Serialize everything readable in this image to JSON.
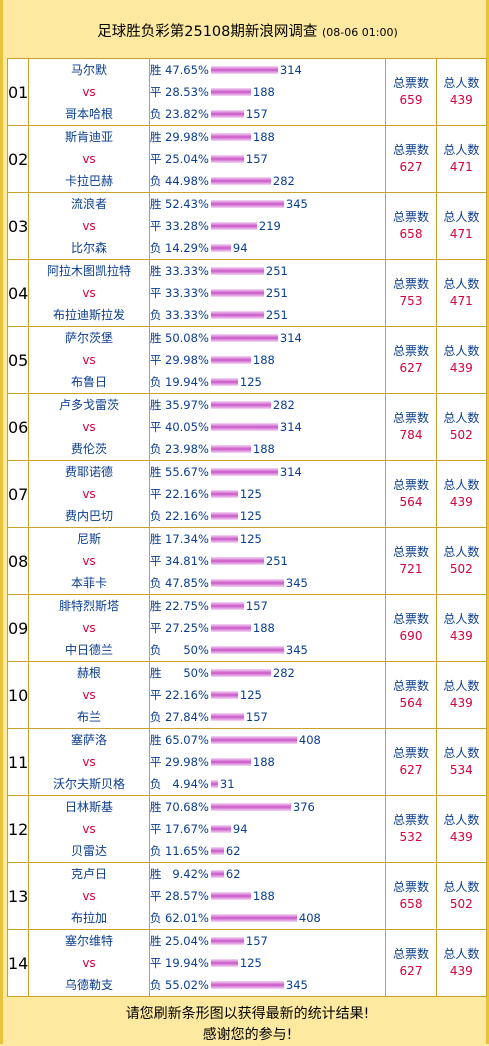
{
  "header": {
    "title": "足球胜负彩第25108期新浪网调查",
    "time": "(08-06 01:00)"
  },
  "labels": {
    "win": "胜",
    "draw": "平",
    "loss": "负",
    "vs": "vs",
    "total_votes": "总票数",
    "total_people": "总人数"
  },
  "chart_data": {
    "type": "bar",
    "title": "足球胜负彩第25108期新浪网调查",
    "orientation": "horizontal",
    "series_names": [
      "胜",
      "平",
      "负"
    ],
    "matches": [
      {
        "no": "01",
        "home": "马尔默",
        "away": "哥本哈根",
        "win": {
          "pct": "47.65%",
          "votes": 314
        },
        "draw": {
          "pct": "28.53%",
          "votes": 188
        },
        "loss": {
          "pct": "23.82%",
          "votes": 157
        },
        "total_votes": 659,
        "total_people": 439
      },
      {
        "no": "02",
        "home": "斯肯迪亚",
        "away": "卡拉巴赫",
        "win": {
          "pct": "29.98%",
          "votes": 188
        },
        "draw": {
          "pct": "25.04%",
          "votes": 157
        },
        "loss": {
          "pct": "44.98%",
          "votes": 282
        },
        "total_votes": 627,
        "total_people": 471
      },
      {
        "no": "03",
        "home": "流浪者",
        "away": "比尔森",
        "win": {
          "pct": "52.43%",
          "votes": 345
        },
        "draw": {
          "pct": "33.28%",
          "votes": 219
        },
        "loss": {
          "pct": "14.29%",
          "votes": 94
        },
        "total_votes": 658,
        "total_people": 471
      },
      {
        "no": "04",
        "home": "阿拉木图凯拉特",
        "away": "布拉迪斯拉发",
        "win": {
          "pct": "33.33%",
          "votes": 251
        },
        "draw": {
          "pct": "33.33%",
          "votes": 251
        },
        "loss": {
          "pct": "33.33%",
          "votes": 251
        },
        "total_votes": 753,
        "total_people": 471
      },
      {
        "no": "05",
        "home": "萨尔茨堡",
        "away": "布鲁日",
        "win": {
          "pct": "50.08%",
          "votes": 314
        },
        "draw": {
          "pct": "29.98%",
          "votes": 188
        },
        "loss": {
          "pct": "19.94%",
          "votes": 125
        },
        "total_votes": 627,
        "total_people": 439
      },
      {
        "no": "06",
        "home": "卢多戈雷茨",
        "away": "费伦茨",
        "win": {
          "pct": "35.97%",
          "votes": 282
        },
        "draw": {
          "pct": "40.05%",
          "votes": 314
        },
        "loss": {
          "pct": "23.98%",
          "votes": 188
        },
        "total_votes": 784,
        "total_people": 502
      },
      {
        "no": "07",
        "home": "费耶诺德",
        "away": "费内巴切",
        "win": {
          "pct": "55.67%",
          "votes": 314
        },
        "draw": {
          "pct": "22.16%",
          "votes": 125
        },
        "loss": {
          "pct": "22.16%",
          "votes": 125
        },
        "total_votes": 564,
        "total_people": 439
      },
      {
        "no": "08",
        "home": "尼斯",
        "away": "本菲卡",
        "win": {
          "pct": "17.34%",
          "votes": 125
        },
        "draw": {
          "pct": "34.81%",
          "votes": 251
        },
        "loss": {
          "pct": "47.85%",
          "votes": 345
        },
        "total_votes": 721,
        "total_people": 502
      },
      {
        "no": "09",
        "home": "腓特烈斯塔",
        "away": "中日德兰",
        "win": {
          "pct": "22.75%",
          "votes": 157
        },
        "draw": {
          "pct": "27.25%",
          "votes": 188
        },
        "loss": {
          "pct": "50%",
          "votes": 345
        },
        "total_votes": 690,
        "total_people": 439
      },
      {
        "no": "10",
        "home": "赫根",
        "away": "布兰",
        "win": {
          "pct": "50%",
          "votes": 282
        },
        "draw": {
          "pct": "22.16%",
          "votes": 125
        },
        "loss": {
          "pct": "27.84%",
          "votes": 157
        },
        "total_votes": 564,
        "total_people": 439
      },
      {
        "no": "11",
        "home": "塞萨洛",
        "away": "沃尔夫斯贝格",
        "win": {
          "pct": "65.07%",
          "votes": 408
        },
        "draw": {
          "pct": "29.98%",
          "votes": 188
        },
        "loss": {
          "pct": "4.94%",
          "votes": 31
        },
        "total_votes": 627,
        "total_people": 534
      },
      {
        "no": "12",
        "home": "日林斯基",
        "away": "贝雷达",
        "win": {
          "pct": "70.68%",
          "votes": 376
        },
        "draw": {
          "pct": "17.67%",
          "votes": 94
        },
        "loss": {
          "pct": "11.65%",
          "votes": 62
        },
        "total_votes": 532,
        "total_people": 439
      },
      {
        "no": "13",
        "home": "克卢日",
        "away": "布拉加",
        "win": {
          "pct": "9.42%",
          "votes": 62
        },
        "draw": {
          "pct": "28.57%",
          "votes": 188
        },
        "loss": {
          "pct": "62.01%",
          "votes": 408
        },
        "total_votes": 658,
        "total_people": 502
      },
      {
        "no": "14",
        "home": "塞尔维特",
        "away": "乌德勒支",
        "win": {
          "pct": "25.04%",
          "votes": 157
        },
        "draw": {
          "pct": "19.94%",
          "votes": 125
        },
        "loss": {
          "pct": "55.02%",
          "votes": 345
        },
        "total_votes": 627,
        "total_people": 439
      }
    ]
  },
  "footer": {
    "line1": "请您刷新条形图以获得最新的统计结果!",
    "line2": "感谢您的参与!"
  },
  "colors": {
    "background": "#fde9a0",
    "border": "#c9a227",
    "text_blue": "#0a3d8f",
    "text_red": "#d8003a",
    "bar": "#d36cd3"
  }
}
